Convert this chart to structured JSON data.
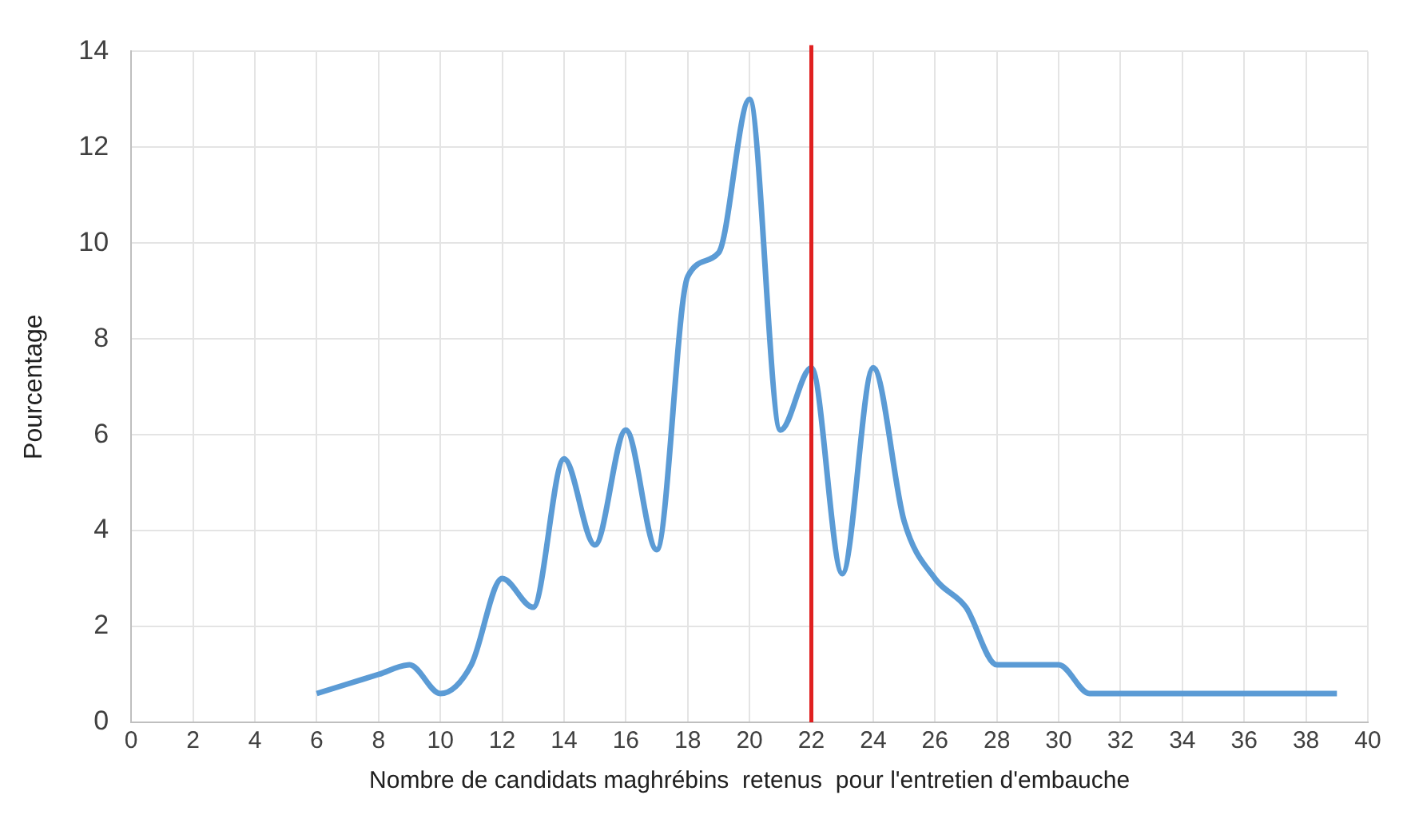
{
  "chart_data": {
    "type": "line",
    "xlabel": "Nombre de candidats maghrébins  retenus  pour l'entretien d'embauche",
    "ylabel": "Pourcentage",
    "x": [
      6,
      7,
      8,
      9,
      10,
      11,
      12,
      13,
      14,
      15,
      16,
      17,
      18,
      19,
      20,
      21,
      22,
      23,
      24,
      25,
      26,
      27,
      28,
      29,
      30,
      31,
      32,
      33,
      34,
      35,
      36,
      37,
      38,
      39
    ],
    "series": [
      {
        "color": "#5b9bd5",
        "values": [
          0.6,
          0.8,
          1.0,
          1.2,
          0.6,
          1.2,
          3.0,
          2.4,
          5.5,
          3.7,
          6.1,
          3.6,
          9.3,
          9.8,
          13.0,
          6.1,
          7.4,
          3.1,
          7.4,
          4.2,
          3.0,
          2.4,
          1.2,
          1.2,
          1.2,
          0.6,
          0.6,
          0.6,
          0.6,
          0.6,
          0.6,
          0.6,
          0.6,
          0.6
        ]
      }
    ],
    "xlim": [
      0,
      40
    ],
    "xticks": [
      0,
      2,
      4,
      6,
      8,
      10,
      12,
      14,
      16,
      18,
      20,
      22,
      24,
      26,
      28,
      30,
      32,
      34,
      36,
      38,
      40
    ],
    "ylim": [
      0,
      14
    ],
    "yticks": [
      0,
      2,
      4,
      6,
      8,
      10,
      12,
      14
    ],
    "ref_lines": [
      {
        "axis": "x",
        "value": 22,
        "color": "#e02020"
      }
    ],
    "grid": true,
    "legend": false,
    "marker": "none",
    "line_style": "solid"
  }
}
